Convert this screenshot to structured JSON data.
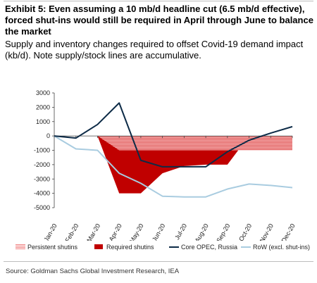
{
  "header": {
    "title": "Exhibit 5: Even assuming a 10 mb/d headline cut (6.5 mb/d effective), forced shut-ins would still be required in April through June to balance the market",
    "subtitle": "Supply and inventory changes required to offset Covid-19 demand impact (kb/d). Note supply/stock lines are accumulative."
  },
  "chart_data": {
    "type": "area",
    "categories": [
      "Jan-20",
      "Feb-20",
      "Mar-20",
      "Apr-20",
      "May-20",
      "Jun-20",
      "Jul-20",
      "Aug-20",
      "Sep-20",
      "Oct-20",
      "Nov-20",
      "Dec-20"
    ],
    "ylim": [
      -5000,
      3000
    ],
    "yticks": [
      "3000",
      "2000",
      "1000",
      "0",
      "-1000",
      "-2000",
      "-3000",
      "-4000",
      "-5000"
    ],
    "ytick_values": [
      3000,
      2000,
      1000,
      0,
      -1000,
      -2000,
      -3000,
      -4000,
      -5000
    ],
    "grid": false,
    "legend_position": "bottom",
    "series": [
      {
        "name": "Persistent shutins",
        "kind": "area",
        "color": "#f08080",
        "values": [
          0,
          0,
          0,
          -1000,
          -1000,
          -1000,
          -1000,
          -1000,
          -1000,
          -1000,
          -1000,
          -1000
        ]
      },
      {
        "name": "Required shutins",
        "kind": "area",
        "color": "#c00000",
        "values": [
          0,
          0,
          0,
          -4000,
          -4000,
          -2600,
          -2100,
          -2000,
          -2000,
          0,
          0,
          0
        ]
      },
      {
        "name": "Core OPEC, Russia",
        "kind": "line",
        "color": "#0d2b47",
        "values": [
          0,
          -150,
          800,
          2300,
          -1700,
          -2150,
          -2150,
          -2150,
          -1100,
          -300,
          200,
          650
        ]
      },
      {
        "name": "RoW (excl. shut-ins)",
        "kind": "line",
        "color": "#a9cce0",
        "values": [
          0,
          -900,
          -1000,
          -2600,
          -3300,
          -4200,
          -4250,
          -4250,
          -3700,
          -3350,
          -3450,
          -3600
        ]
      }
    ]
  },
  "source": "Source: Goldman Sachs Global Investment Research, IEA"
}
